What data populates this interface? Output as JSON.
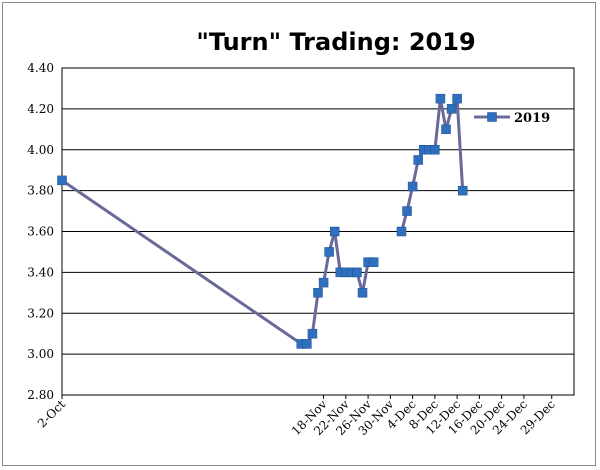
{
  "chart_data": {
    "type": "line",
    "title": "\"Turn\" Trading: 2019",
    "xlabel": "",
    "ylabel": "",
    "ylim": [
      2.8,
      4.4
    ],
    "y_ticks": [
      "2.80",
      "3.00",
      "3.20",
      "3.40",
      "3.60",
      "3.80",
      "4.00",
      "4.20",
      "4.40"
    ],
    "x_range": [
      "2019-10-02",
      "2020-01-02"
    ],
    "x_ticks": [
      {
        "date": "2019-10-02",
        "label": "2-Oct"
      },
      {
        "date": "2019-11-18",
        "label": "18-Nov"
      },
      {
        "date": "2019-11-22",
        "label": "22-Nov"
      },
      {
        "date": "2019-11-26",
        "label": "26-Nov"
      },
      {
        "date": "2019-11-30",
        "label": "30-Nov"
      },
      {
        "date": "2019-12-04",
        "label": "4-Dec"
      },
      {
        "date": "2019-12-08",
        "label": "8-Dec"
      },
      {
        "date": "2019-12-12",
        "label": "12-Dec"
      },
      {
        "date": "2019-12-16",
        "label": "16-Dec"
      },
      {
        "date": "2019-12-20",
        "label": "20-Dec"
      },
      {
        "date": "2019-12-24",
        "label": "24-Dec"
      },
      {
        "date": "2019-12-29",
        "label": "29-Dec"
      }
    ],
    "grid": "horizontal",
    "legend_position": "right",
    "series": [
      {
        "name": "2019",
        "line_color": "#6a6a9a",
        "marker_color": "#2e6fbe",
        "segments": [
          [
            {
              "x": "2019-10-02",
              "y": 3.85
            },
            {
              "x": "2019-11-14",
              "y": 3.05
            },
            {
              "x": "2019-11-15",
              "y": 3.05
            },
            {
              "x": "2019-11-16",
              "y": 3.1
            },
            {
              "x": "2019-11-17",
              "y": 3.3
            },
            {
              "x": "2019-11-18",
              "y": 3.35
            },
            {
              "x": "2019-11-19",
              "y": 3.5
            },
            {
              "x": "2019-11-20",
              "y": 3.6
            },
            {
              "x": "2019-11-21",
              "y": 3.4
            },
            {
              "x": "2019-11-22",
              "y": 3.4
            },
            {
              "x": "2019-11-23",
              "y": 3.4
            },
            {
              "x": "2019-11-24",
              "y": 3.4
            },
            {
              "x": "2019-11-25",
              "y": 3.3
            },
            {
              "x": "2019-11-26",
              "y": 3.45
            },
            {
              "x": "2019-11-27",
              "y": 3.45
            }
          ],
          [
            {
              "x": "2019-12-02",
              "y": 3.6
            },
            {
              "x": "2019-12-03",
              "y": 3.7
            },
            {
              "x": "2019-12-04",
              "y": 3.82
            },
            {
              "x": "2019-12-05",
              "y": 3.95
            },
            {
              "x": "2019-12-06",
              "y": 4.0
            },
            {
              "x": "2019-12-07",
              "y": 4.0
            },
            {
              "x": "2019-12-08",
              "y": 4.0
            },
            {
              "x": "2019-12-09",
              "y": 4.25
            },
            {
              "x": "2019-12-10",
              "y": 4.1
            },
            {
              "x": "2019-12-11",
              "y": 4.2
            },
            {
              "x": "2019-12-12",
              "y": 4.25
            },
            {
              "x": "2019-12-13",
              "y": 3.8
            }
          ]
        ]
      }
    ]
  }
}
